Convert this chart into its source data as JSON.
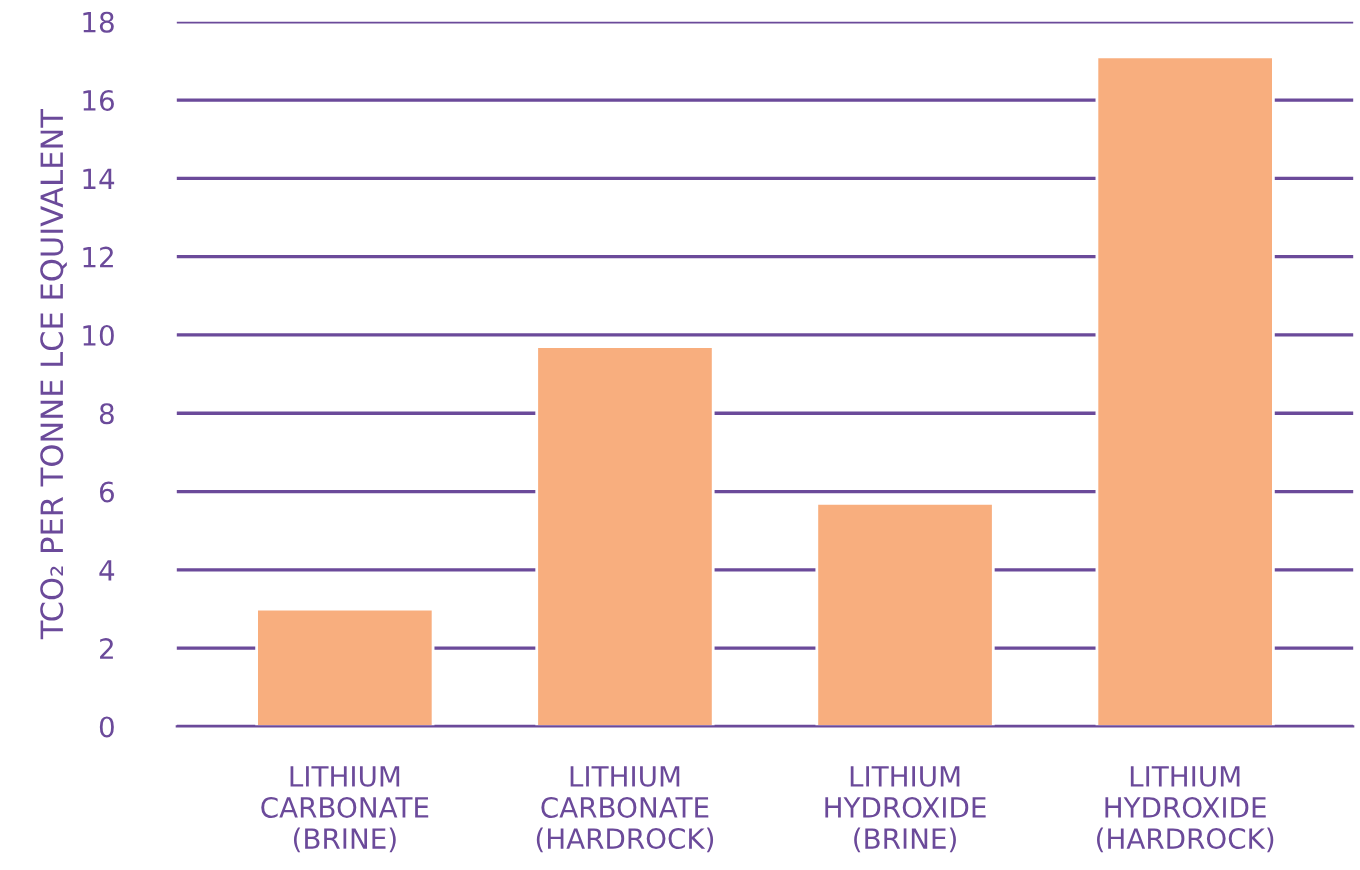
{
  "chart_data": {
    "type": "bar",
    "ylabel": "TCO₂ PER TONNE LCE EQUIVALENT",
    "categories": [
      "LITHIUM\nCARBONATE\n(BRINE)",
      "LITHIUM\nCARBONATE\n(HARDROCK)",
      "LITHIUM\nHYDROXIDE\n(BRINE)",
      "LITHIUM\nHYDROXIDE\n(HARDROCK)"
    ],
    "values": [
      3.0,
      9.7,
      5.7,
      17.1
    ],
    "color": "#f8ae7e",
    "ylim": [
      0,
      18
    ],
    "yticks": [
      0,
      2,
      4,
      6,
      8,
      10,
      12,
      14,
      16,
      18
    ],
    "grid": "y"
  }
}
